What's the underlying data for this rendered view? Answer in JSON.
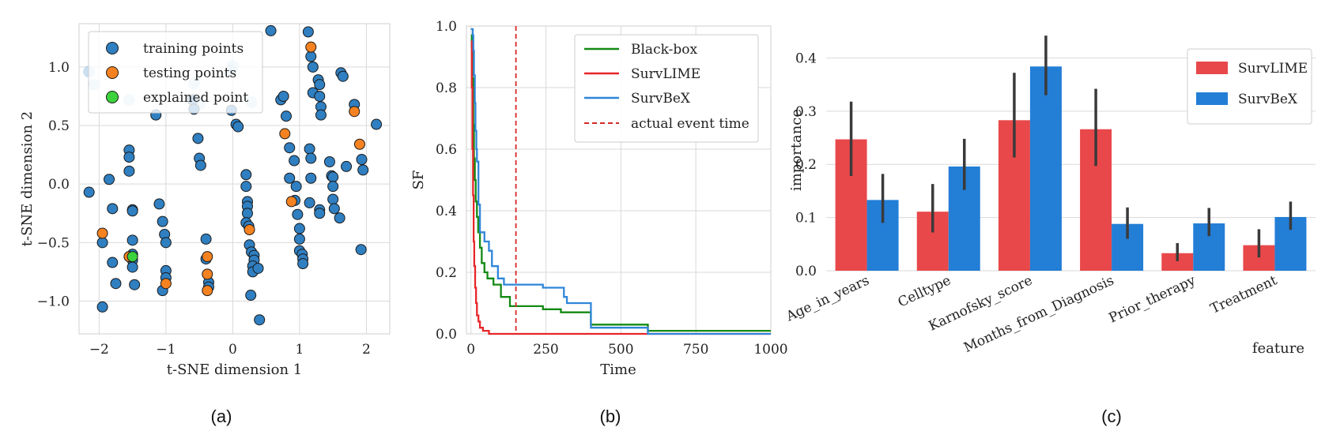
{
  "chart_data": [
    {
      "type": "scatter",
      "panel_label": "(a)",
      "xlabel": "t-SNE dimension 1",
      "ylabel": "t-SNE dimension 2",
      "xlim": [
        -2.3,
        2.35
      ],
      "ylim": [
        -1.28,
        1.37
      ],
      "xticks": [
        -2,
        -1,
        0,
        1,
        2
      ],
      "yticks": [
        -1.0,
        -0.5,
        0.0,
        0.5,
        1.0
      ],
      "xtick_labels": [
        "−2",
        "−1",
        "0",
        "1",
        "2"
      ],
      "ytick_labels": [
        "−1.0",
        "−0.5",
        "0.0",
        "0.5",
        "1.0"
      ],
      "grid": true,
      "legend_position": "top-left",
      "colors": {
        "training": "#2f7fc1",
        "testing": "#f58220",
        "explained": "#3cd23c"
      },
      "series": [
        {
          "name": "training points",
          "points": [
            [
              -2.15,
              -0.07
            ],
            [
              -1.95,
              -1.05
            ],
            [
              -1.95,
              -0.5
            ],
            [
              -1.85,
              0.04
            ],
            [
              -1.8,
              -0.21
            ],
            [
              -1.8,
              -0.67
            ],
            [
              -1.75,
              -0.85
            ],
            [
              -1.55,
              0.29
            ],
            [
              -1.55,
              0.23
            ],
            [
              -1.55,
              0.11
            ],
            [
              -1.5,
              -0.22
            ],
            [
              -1.5,
              -0.23
            ],
            [
              -1.5,
              -0.48
            ],
            [
              -1.5,
              -0.6
            ],
            [
              -1.5,
              -0.65
            ],
            [
              -1.5,
              -0.71
            ],
            [
              -1.47,
              -0.86
            ],
            [
              -1.15,
              0.59
            ],
            [
              -1.1,
              -0.17
            ],
            [
              -1.05,
              -0.32
            ],
            [
              -1.02,
              -0.43
            ],
            [
              -1.0,
              -0.5
            ],
            [
              -1.0,
              -0.74
            ],
            [
              -1.0,
              -0.8
            ],
            [
              -1.05,
              -0.91
            ],
            [
              -0.6,
              0.72
            ],
            [
              -0.58,
              0.64
            ],
            [
              -0.52,
              0.39
            ],
            [
              -0.5,
              0.22
            ],
            [
              -0.48,
              0.16
            ],
            [
              -0.4,
              -0.47
            ],
            [
              -0.4,
              -0.64
            ],
            [
              -0.36,
              -0.84
            ],
            [
              -0.36,
              -0.88
            ],
            [
              -0.02,
              0.63
            ],
            [
              0.05,
              0.51
            ],
            [
              0.08,
              0.49
            ],
            [
              0.2,
              0.08
            ],
            [
              0.2,
              -0.02
            ],
            [
              0.22,
              -0.15
            ],
            [
              0.22,
              -0.19
            ],
            [
              0.22,
              -0.25
            ],
            [
              0.2,
              -0.33
            ],
            [
              0.24,
              -0.36
            ],
            [
              0.25,
              -0.52
            ],
            [
              0.28,
              -0.58
            ],
            [
              0.32,
              -0.61
            ],
            [
              0.32,
              -0.65
            ],
            [
              0.3,
              -0.7
            ],
            [
              0.3,
              -0.75
            ],
            [
              0.38,
              -0.72
            ],
            [
              0.27,
              -0.95
            ],
            [
              0.4,
              -1.16
            ],
            [
              0.57,
              1.31
            ],
            [
              0.72,
              0.72
            ],
            [
              0.76,
              0.75
            ],
            [
              0.8,
              0.58
            ],
            [
              0.85,
              0.31
            ],
            [
              0.85,
              0.05
            ],
            [
              0.92,
              0.2
            ],
            [
              0.95,
              -0.02
            ],
            [
              0.93,
              -0.14
            ],
            [
              0.97,
              -0.26
            ],
            [
              1.0,
              -0.38
            ],
            [
              1.0,
              -0.47
            ],
            [
              1.0,
              -0.57
            ],
            [
              1.04,
              -0.6
            ],
            [
              1.05,
              -0.64
            ],
            [
              1.05,
              -0.68
            ],
            [
              1.13,
              1.3
            ],
            [
              1.17,
              1.09
            ],
            [
              1.2,
              1.0
            ],
            [
              1.2,
              0.78
            ],
            [
              1.15,
              0.3
            ],
            [
              1.17,
              0.22
            ],
            [
              1.17,
              0.05
            ],
            [
              1.15,
              -0.16
            ],
            [
              1.28,
              0.89
            ],
            [
              1.3,
              0.85
            ],
            [
              1.3,
              0.75
            ],
            [
              1.32,
              0.66
            ],
            [
              1.32,
              0.59
            ],
            [
              1.3,
              -0.22
            ],
            [
              1.3,
              -0.25
            ],
            [
              1.45,
              0.19
            ],
            [
              1.48,
              0.07
            ],
            [
              1.5,
              0.06
            ],
            [
              1.5,
              -0.02
            ],
            [
              1.5,
              -0.13
            ],
            [
              1.52,
              -0.21
            ],
            [
              1.6,
              -0.29
            ],
            [
              1.62,
              0.95
            ],
            [
              1.65,
              0.92
            ],
            [
              1.7,
              0.15
            ],
            [
              1.82,
              0.68
            ],
            [
              1.93,
              0.21
            ],
            [
              1.95,
              0.12
            ],
            [
              2.15,
              0.51
            ],
            [
              1.92,
              -0.56
            ]
          ]
        },
        {
          "name": "testing points",
          "points": [
            [
              -1.95,
              -0.42
            ],
            [
              -1.55,
              -0.62
            ],
            [
              -1.0,
              -0.85
            ],
            [
              -0.38,
              -0.62
            ],
            [
              -0.38,
              -0.77
            ],
            [
              -0.38,
              -0.91
            ],
            [
              0.25,
              -0.39
            ],
            [
              0.78,
              0.43
            ],
            [
              0.88,
              -0.15
            ],
            [
              1.17,
              1.17
            ],
            [
              1.82,
              0.62
            ],
            [
              1.9,
              0.34
            ]
          ]
        },
        {
          "name": "explained point",
          "points": [
            [
              -1.5,
              -0.62
            ]
          ]
        }
      ],
      "faded_points": [
        [
          -2.15,
          0.96
        ],
        [
          -2.08,
          0.85
        ],
        [
          -1.55,
          0.72
        ],
        [
          -0.58,
          0.86
        ],
        [
          -0.5,
          0.68
        ],
        [
          -0.02,
          0.97
        ],
        [
          0.0,
          1.01
        ],
        [
          0.28,
          0.7
        ]
      ]
    },
    {
      "type": "line",
      "panel_label": "(b)",
      "xlabel": "Time",
      "ylabel": "SF",
      "xlim": [
        -15,
        1000
      ],
      "ylim": [
        0.0,
        1.0
      ],
      "xticks": [
        0,
        250,
        500,
        750,
        1000
      ],
      "xtick_labels": [
        "0",
        "250",
        "500",
        "750",
        "1000"
      ],
      "yticks": [
        0.0,
        0.2,
        0.4,
        0.6,
        0.8,
        1.0
      ],
      "ytick_labels": [
        "0.0",
        "0.2",
        "0.4",
        "0.6",
        "0.8",
        "1.0"
      ],
      "grid": true,
      "legend_position": "top-right",
      "series": [
        {
          "name": "Black-box",
          "color": "#138a13",
          "steps": [
            [
              0,
              0.97
            ],
            [
              3,
              0.93
            ],
            [
              5,
              0.83
            ],
            [
              8,
              0.68
            ],
            [
              10,
              0.57
            ],
            [
              13,
              0.5
            ],
            [
              16,
              0.43
            ],
            [
              20,
              0.38
            ],
            [
              24,
              0.33
            ],
            [
              30,
              0.28
            ],
            [
              36,
              0.23
            ],
            [
              45,
              0.2
            ],
            [
              55,
              0.18
            ],
            [
              75,
              0.16
            ],
            [
              100,
              0.12
            ],
            [
              130,
              0.09
            ],
            [
              240,
              0.08
            ],
            [
              300,
              0.07
            ],
            [
              400,
              0.03
            ],
            [
              590,
              0.01
            ],
            [
              1000,
              0.01
            ]
          ]
        },
        {
          "name": "SurvLIME",
          "color": "#e8262a",
          "steps": [
            [
              0,
              0.95
            ],
            [
              3,
              0.8
            ],
            [
              5,
              0.6
            ],
            [
              7,
              0.45
            ],
            [
              9,
              0.3
            ],
            [
              11,
              0.22
            ],
            [
              14,
              0.15
            ],
            [
              17,
              0.1
            ],
            [
              20,
              0.06
            ],
            [
              25,
              0.04
            ],
            [
              30,
              0.02
            ],
            [
              40,
              0.01
            ],
            [
              60,
              0.0
            ],
            [
              1000,
              0.0
            ]
          ]
        },
        {
          "name": "SurvBeX",
          "color": "#2f86d9",
          "steps": [
            [
              0,
              0.99
            ],
            [
              6,
              0.97
            ],
            [
              8,
              0.92
            ],
            [
              10,
              0.84
            ],
            [
              13,
              0.75
            ],
            [
              15,
              0.66
            ],
            [
              18,
              0.6
            ],
            [
              20,
              0.56
            ],
            [
              25,
              0.42
            ],
            [
              30,
              0.33
            ],
            [
              45,
              0.3
            ],
            [
              60,
              0.27
            ],
            [
              70,
              0.22
            ],
            [
              90,
              0.18
            ],
            [
              110,
              0.16
            ],
            [
              240,
              0.15
            ],
            [
              310,
              0.12
            ],
            [
              320,
              0.1
            ],
            [
              400,
              0.02
            ],
            [
              590,
              0.0
            ],
            [
              1000,
              0.0
            ]
          ]
        }
      ],
      "vline": {
        "name": "actual event time",
        "x": 150,
        "color": "#d62728"
      }
    },
    {
      "type": "bar",
      "panel_label": "(c)",
      "xlabel": "feature",
      "ylabel": "importance",
      "ylim": [
        0.0,
        0.46
      ],
      "yticks": [
        0.0,
        0.1,
        0.2,
        0.3,
        0.4
      ],
      "ytick_labels": [
        "0.0",
        "0.1",
        "0.2",
        "0.3",
        "0.4"
      ],
      "grid": true,
      "legend_position": "top-right",
      "categories": [
        "Age_in_years",
        "Celltype",
        "Karnofsky_score",
        "Months_from_Diagnosis",
        "Prior_therapy",
        "Treatment"
      ],
      "series": [
        {
          "name": "SurvLIME",
          "color": "#e8484a",
          "values": [
            0.247,
            0.111,
            0.283,
            0.266,
            0.033,
            0.048
          ],
          "err_low": [
            0.178,
            0.072,
            0.213,
            0.197,
            0.018,
            0.025
          ],
          "err_high": [
            0.318,
            0.163,
            0.372,
            0.342,
            0.052,
            0.078
          ]
        },
        {
          "name": "SurvBeX",
          "color": "#237ed6",
          "values": [
            0.133,
            0.196,
            0.384,
            0.088,
            0.089,
            0.101
          ],
          "err_low": [
            0.09,
            0.152,
            0.33,
            0.06,
            0.065,
            0.077
          ],
          "err_high": [
            0.182,
            0.248,
            0.442,
            0.119,
            0.118,
            0.13
          ]
        }
      ]
    }
  ]
}
